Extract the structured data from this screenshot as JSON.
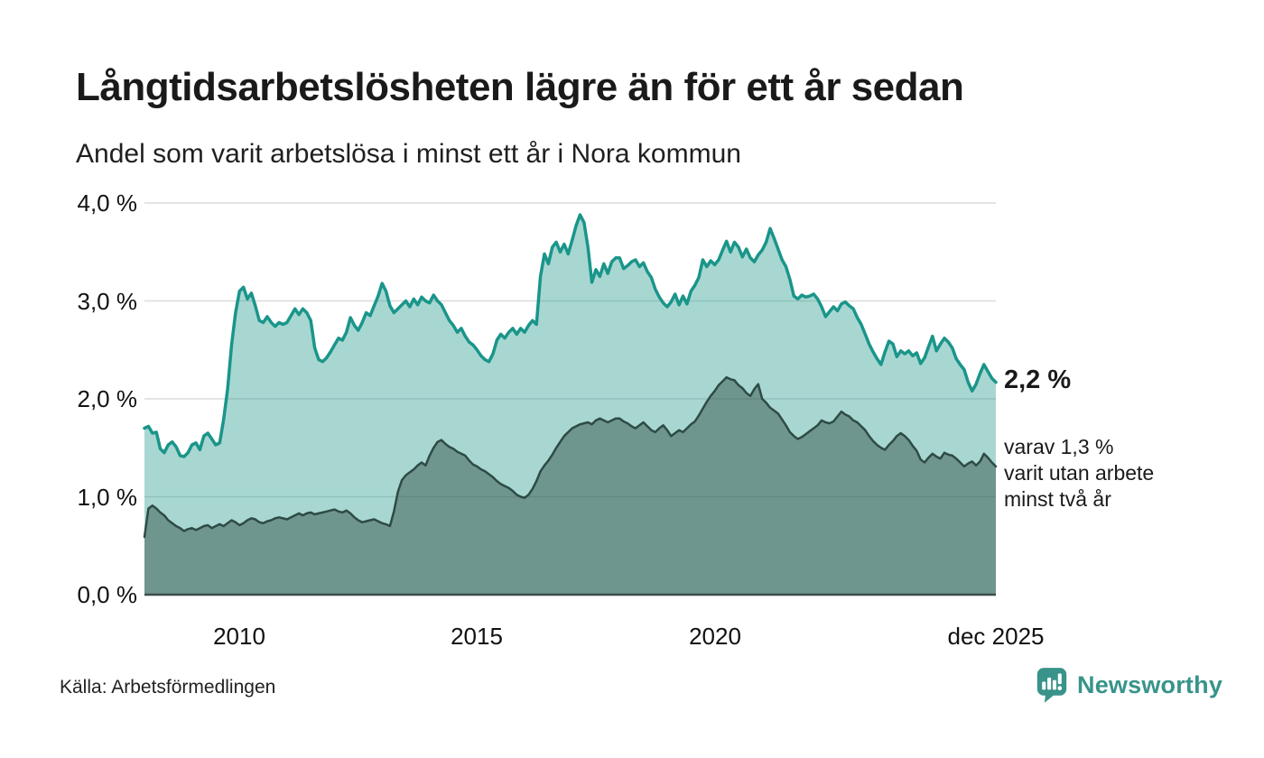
{
  "header": {
    "title": "Långtidsarbetslösheten lägre än för ett år sedan",
    "subtitle": "Andel som varit arbetslösa i minst ett år i Nora kommun"
  },
  "chart_data": {
    "type": "area",
    "title": "Långtidsarbetslösheten lägre än för ett år sedan",
    "subtitle": "Andel som varit arbetslösa i minst ett år i Nora kommun",
    "x_start_year": 2008,
    "x_end_label_year": 2025.917,
    "ylim": [
      0,
      4
    ],
    "grid": "horizontal-only",
    "grid_color": "#DBDBDB",
    "baseline_color": "#3D4E4A",
    "yticks": [
      {
        "value": 0.0,
        "label": "0,0 %"
      },
      {
        "value": 1.0,
        "label": "1,0 %"
      },
      {
        "value": 2.0,
        "label": "2,0 %"
      },
      {
        "value": 3.0,
        "label": "3,0 %"
      },
      {
        "value": 4.0,
        "label": "4,0 %"
      }
    ],
    "xticks": [
      {
        "year": 2010,
        "label": "2010"
      },
      {
        "year": 2015,
        "label": "2015"
      },
      {
        "year": 2020,
        "label": "2020"
      },
      {
        "year": 2025.917,
        "label": "dec 2025"
      }
    ],
    "series": [
      {
        "name": "Arbetslösa minst ett år",
        "color": "#1A958A",
        "fill": "rgba(26,149,138,0.38)",
        "stroke_width": 3.5,
        "values": [
          1.7,
          1.72,
          1.65,
          1.66,
          1.49,
          1.45,
          1.53,
          1.56,
          1.51,
          1.42,
          1.41,
          1.45,
          1.53,
          1.55,
          1.48,
          1.62,
          1.65,
          1.59,
          1.53,
          1.55,
          1.79,
          2.1,
          2.55,
          2.88,
          3.1,
          3.14,
          3.02,
          3.08,
          2.95,
          2.8,
          2.78,
          2.84,
          2.78,
          2.74,
          2.78,
          2.76,
          2.78,
          2.85,
          2.92,
          2.86,
          2.92,
          2.88,
          2.8,
          2.52,
          2.4,
          2.38,
          2.42,
          2.48,
          2.55,
          2.62,
          2.6,
          2.68,
          2.83,
          2.75,
          2.7,
          2.78,
          2.88,
          2.85,
          2.95,
          3.05,
          3.18,
          3.1,
          2.95,
          2.88,
          2.92,
          2.96,
          3.0,
          2.94,
          3.02,
          2.96,
          3.04,
          3.0,
          2.98,
          3.06,
          3.0,
          2.96,
          2.88,
          2.8,
          2.75,
          2.68,
          2.72,
          2.64,
          2.58,
          2.55,
          2.5,
          2.44,
          2.4,
          2.38,
          2.46,
          2.6,
          2.66,
          2.62,
          2.68,
          2.72,
          2.66,
          2.72,
          2.68,
          2.75,
          2.8,
          2.76,
          3.25,
          3.48,
          3.38,
          3.55,
          3.6,
          3.5,
          3.58,
          3.48,
          3.62,
          3.77,
          3.88,
          3.8,
          3.55,
          3.19,
          3.32,
          3.25,
          3.38,
          3.28,
          3.4,
          3.44,
          3.44,
          3.33,
          3.36,
          3.4,
          3.42,
          3.35,
          3.39,
          3.3,
          3.24,
          3.12,
          3.04,
          2.98,
          2.94,
          2.99,
          3.07,
          2.96,
          3.05,
          2.97,
          3.1,
          3.16,
          3.24,
          3.42,
          3.35,
          3.41,
          3.37,
          3.42,
          3.52,
          3.61,
          3.5,
          3.6,
          3.55,
          3.45,
          3.53,
          3.44,
          3.4,
          3.47,
          3.52,
          3.6,
          3.74,
          3.64,
          3.53,
          3.42,
          3.35,
          3.22,
          3.05,
          3.02,
          3.06,
          3.04,
          3.05,
          3.07,
          3.02,
          2.94,
          2.84,
          2.89,
          2.94,
          2.9,
          2.97,
          2.99,
          2.95,
          2.92,
          2.83,
          2.76,
          2.66,
          2.56,
          2.48,
          2.41,
          2.35,
          2.48,
          2.59,
          2.56,
          2.43,
          2.49,
          2.46,
          2.49,
          2.44,
          2.47,
          2.36,
          2.42,
          2.53,
          2.64,
          2.49,
          2.56,
          2.62,
          2.58,
          2.52,
          2.41,
          2.35,
          2.3,
          2.17,
          2.08,
          2.15,
          2.26,
          2.35,
          2.28,
          2.21,
          2.17
        ]
      },
      {
        "name": "Arbetslösa minst två år",
        "color": "#2E4B45",
        "fill": "rgba(46,75,69,0.47)",
        "stroke_width": 2.5,
        "values": [
          0.59,
          0.88,
          0.91,
          0.88,
          0.84,
          0.81,
          0.76,
          0.73,
          0.7,
          0.68,
          0.65,
          0.67,
          0.68,
          0.66,
          0.68,
          0.7,
          0.71,
          0.68,
          0.7,
          0.72,
          0.7,
          0.73,
          0.76,
          0.74,
          0.71,
          0.73,
          0.76,
          0.78,
          0.77,
          0.74,
          0.73,
          0.75,
          0.76,
          0.78,
          0.79,
          0.78,
          0.77,
          0.79,
          0.81,
          0.83,
          0.81,
          0.83,
          0.84,
          0.82,
          0.83,
          0.84,
          0.85,
          0.86,
          0.87,
          0.85,
          0.84,
          0.86,
          0.83,
          0.79,
          0.76,
          0.74,
          0.75,
          0.76,
          0.77,
          0.75,
          0.73,
          0.72,
          0.7,
          0.85,
          1.05,
          1.17,
          1.22,
          1.25,
          1.28,
          1.32,
          1.35,
          1.32,
          1.42,
          1.5,
          1.56,
          1.58,
          1.54,
          1.51,
          1.49,
          1.46,
          1.44,
          1.42,
          1.37,
          1.33,
          1.31,
          1.28,
          1.26,
          1.23,
          1.2,
          1.16,
          1.13,
          1.11,
          1.09,
          1.06,
          1.02,
          1.0,
          0.99,
          1.02,
          1.08,
          1.16,
          1.26,
          1.32,
          1.37,
          1.43,
          1.5,
          1.56,
          1.62,
          1.66,
          1.7,
          1.72,
          1.74,
          1.75,
          1.76,
          1.74,
          1.78,
          1.8,
          1.78,
          1.76,
          1.78,
          1.8,
          1.8,
          1.77,
          1.75,
          1.72,
          1.7,
          1.73,
          1.76,
          1.72,
          1.68,
          1.66,
          1.7,
          1.73,
          1.68,
          1.62,
          1.65,
          1.68,
          1.66,
          1.7,
          1.74,
          1.77,
          1.83,
          1.9,
          1.97,
          2.03,
          2.08,
          2.14,
          2.18,
          2.22,
          2.2,
          2.19,
          2.14,
          2.11,
          2.06,
          2.03,
          2.1,
          2.15,
          2.0,
          1.96,
          1.91,
          1.88,
          1.85,
          1.79,
          1.73,
          1.66,
          1.62,
          1.59,
          1.61,
          1.64,
          1.67,
          1.7,
          1.73,
          1.78,
          1.76,
          1.75,
          1.77,
          1.82,
          1.87,
          1.84,
          1.82,
          1.78,
          1.76,
          1.72,
          1.68,
          1.62,
          1.57,
          1.53,
          1.5,
          1.48,
          1.53,
          1.57,
          1.62,
          1.65,
          1.62,
          1.58,
          1.52,
          1.47,
          1.38,
          1.35,
          1.4,
          1.44,
          1.41,
          1.39,
          1.45,
          1.43,
          1.42,
          1.39,
          1.35,
          1.31,
          1.34,
          1.36,
          1.32,
          1.36,
          1.44,
          1.4,
          1.35,
          1.31
        ]
      }
    ],
    "end_labels": {
      "primary": "2,2 %",
      "secondary_lines": [
        "varav 1,3 %",
        "varit utan arbete",
        "minst två år"
      ]
    }
  },
  "footer": {
    "source": "Källa: Arbetsförmedlingen",
    "brand": "Newsworthy",
    "brand_color": "#38948B",
    "logo_icon": "newsworthy-bars-icon"
  }
}
